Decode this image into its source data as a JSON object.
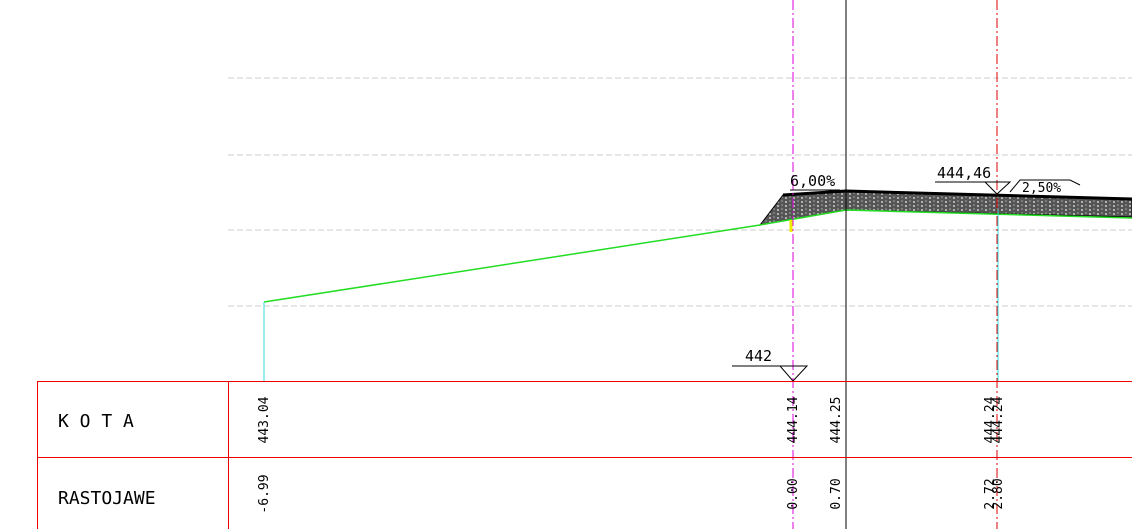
{
  "annotations": {
    "slope_left": "6,00%",
    "elevation_top": "444,46",
    "slope_right": "2,50%",
    "datum": "442"
  },
  "table": {
    "rows": [
      {
        "label": "K O T A",
        "values": [
          "443.04",
          "444.14",
          "444.25",
          "444.24",
          "444.24"
        ]
      },
      {
        "label": "RASTOJAWE",
        "values": [
          "-6.99",
          "0.00",
          "0.70",
          "2.72",
          "2.80"
        ]
      }
    ]
  }
}
